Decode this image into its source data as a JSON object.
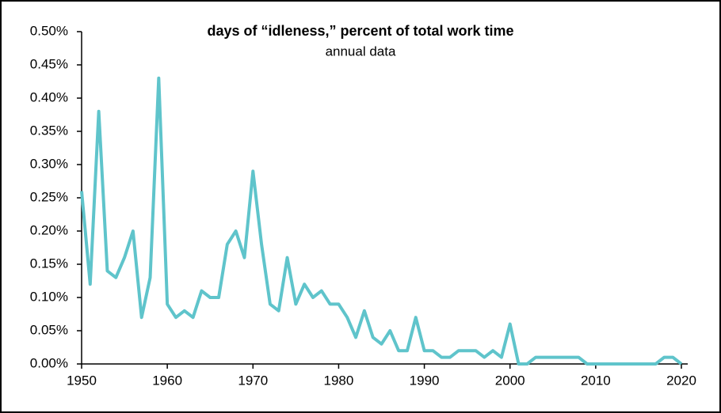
{
  "chart_data": {
    "type": "line",
    "title": "days of “idleness,” percent of total work time",
    "subtitle": "annual data",
    "x": [
      1950,
      1951,
      1952,
      1953,
      1954,
      1955,
      1956,
      1957,
      1958,
      1959,
      1960,
      1961,
      1962,
      1963,
      1964,
      1965,
      1966,
      1967,
      1968,
      1969,
      1970,
      1971,
      1972,
      1973,
      1974,
      1975,
      1976,
      1977,
      1978,
      1979,
      1980,
      1981,
      1982,
      1983,
      1984,
      1985,
      1986,
      1987,
      1988,
      1989,
      1990,
      1991,
      1992,
      1993,
      1994,
      1995,
      1996,
      1997,
      1998,
      1999,
      2000,
      2001,
      2002,
      2003,
      2004,
      2005,
      2006,
      2007,
      2008,
      2009,
      2010,
      2011,
      2012,
      2013,
      2014,
      2015,
      2016,
      2017,
      2018,
      2019,
      2020
    ],
    "series": [
      {
        "color": "#5fc4cb",
        "values": [
          0.26,
          0.12,
          0.38,
          0.14,
          0.13,
          0.16,
          0.2,
          0.07,
          0.13,
          0.43,
          0.09,
          0.07,
          0.08,
          0.07,
          0.11,
          0.1,
          0.1,
          0.18,
          0.2,
          0.16,
          0.29,
          0.18,
          0.09,
          0.08,
          0.16,
          0.09,
          0.12,
          0.1,
          0.11,
          0.09,
          0.09,
          0.07,
          0.04,
          0.08,
          0.04,
          0.03,
          0.05,
          0.02,
          0.02,
          0.07,
          0.02,
          0.02,
          0.01,
          0.01,
          0.02,
          0.02,
          0.02,
          0.01,
          0.02,
          0.01,
          0.06,
          0,
          0,
          0.01,
          0.01,
          0.01,
          0.01,
          0.01,
          0.01,
          0,
          0,
          0,
          0,
          0,
          0,
          0,
          0,
          0,
          0.01,
          0.01,
          0
        ]
      }
    ],
    "xlim": [
      1950,
      2020
    ],
    "xticks": [
      1950,
      1960,
      1970,
      1980,
      1990,
      2000,
      2010,
      2020
    ],
    "ylim": [
      0,
      0.5
    ],
    "yticks": [
      {
        "value": 0,
        "label": "0.00%"
      },
      {
        "value": 0.05,
        "label": "0.05%"
      },
      {
        "value": 0.1,
        "label": "0.10%"
      },
      {
        "value": 0.15,
        "label": "0.15%"
      },
      {
        "value": 0.2,
        "label": "0.20%"
      },
      {
        "value": 0.25,
        "label": "0.25%"
      },
      {
        "value": 0.3,
        "label": "0.30%"
      },
      {
        "value": 0.35,
        "label": "0.35%"
      },
      {
        "value": 0.4,
        "label": "0.40%"
      },
      {
        "value": 0.45,
        "label": "0.45%"
      },
      {
        "value": 0.5,
        "label": "0.50%"
      }
    ]
  }
}
